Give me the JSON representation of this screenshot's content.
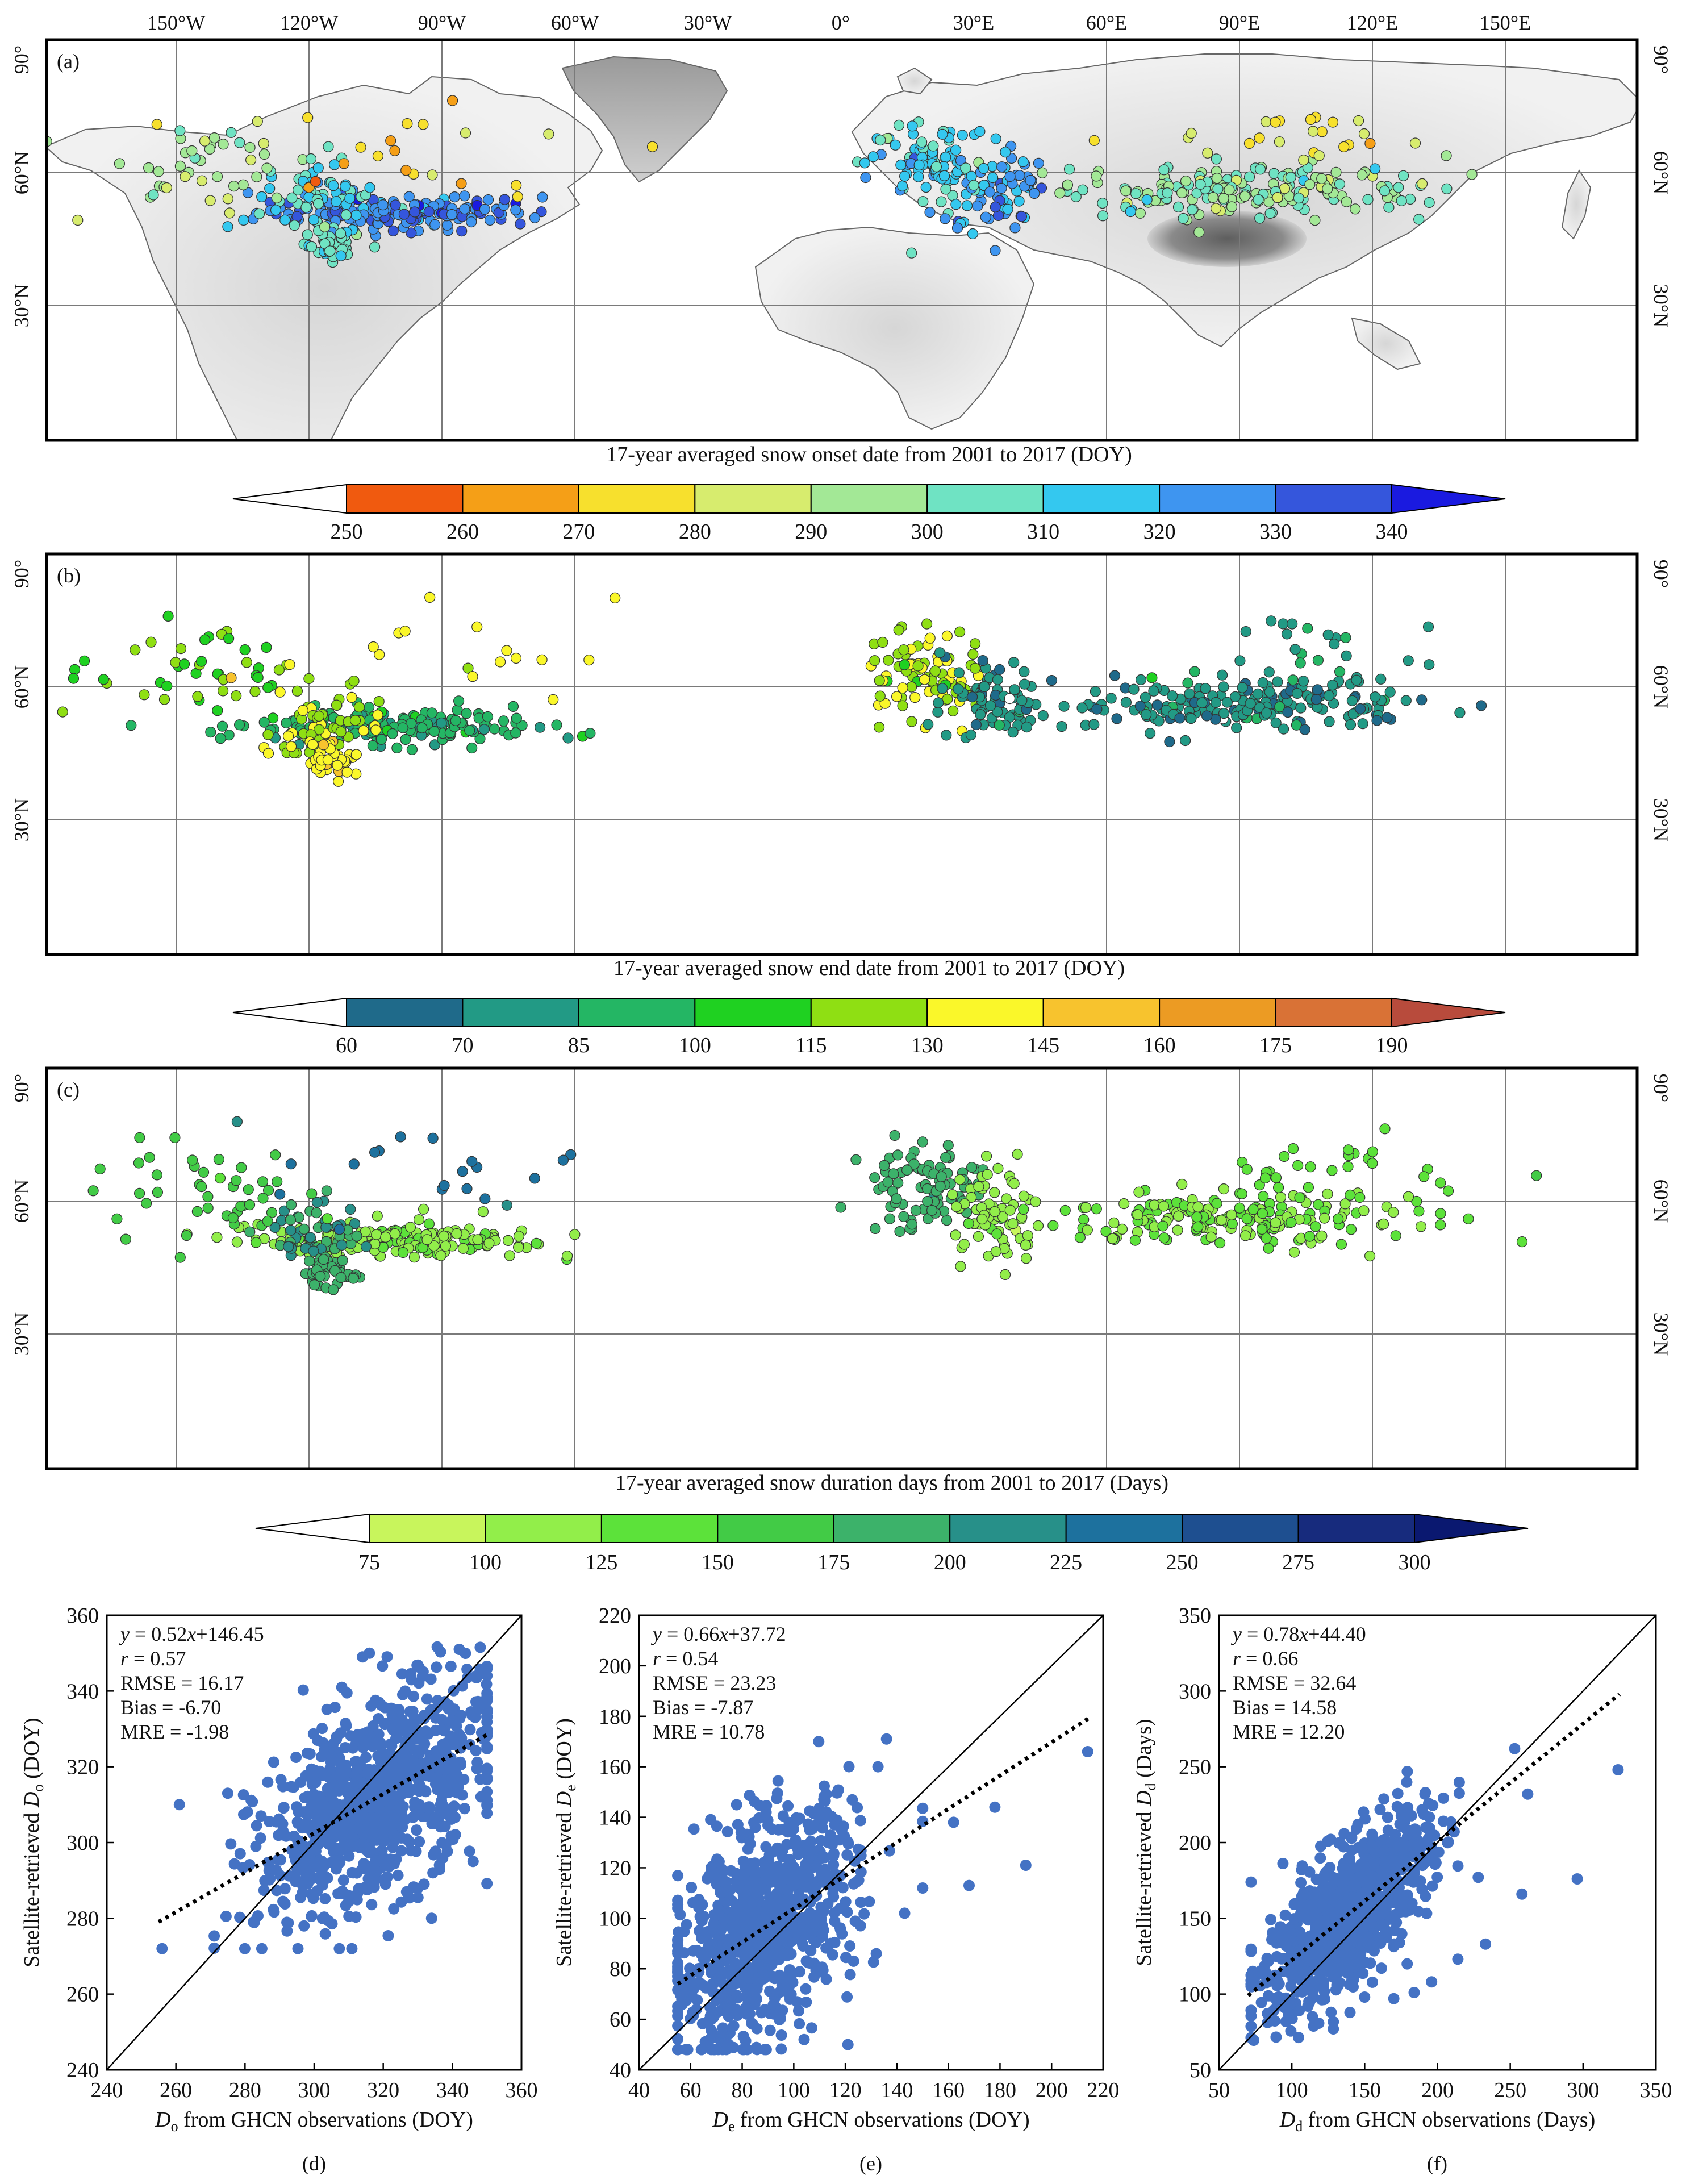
{
  "chart_data": [
    {
      "type": "map",
      "panel": "(a)",
      "top_lon_labels": [
        "150°W",
        "120°W",
        "90°W",
        "60°W",
        "30°W",
        "0°",
        "30°E",
        "60°E",
        "90°E",
        "120°E",
        "150°E"
      ],
      "lat_labels": [
        "90°",
        "60°N",
        "30°N"
      ],
      "colorbar": {
        "title": "17-year averaged snow onset date from 2001 to 2017 (DOY)",
        "ticks": [
          "250",
          "260",
          "270",
          "280",
          "290",
          "300",
          "310",
          "320",
          "330",
          "340"
        ],
        "colors": [
          "#ffffff",
          "#f05a0f",
          "#f59f17",
          "#f7e02d",
          "#d7ec6e",
          "#a3e896",
          "#6fe3c3",
          "#34c8ef",
          "#3e95f0",
          "#3556dc",
          "#1a1ae0"
        ]
      },
      "station_regions": [
        {
          "lon": -100,
          "lat": 51,
          "sd_lon": 16,
          "sd_lat": 2,
          "n": 170,
          "value": 328
        },
        {
          "lon": -118,
          "lat": 54,
          "sd_lon": 6,
          "sd_lat": 4,
          "n": 60,
          "value": 310
        },
        {
          "lon": -115,
          "lat": 44,
          "sd_lon": 3,
          "sd_lat": 2,
          "n": 40,
          "value": 305
        },
        {
          "lon": -145,
          "lat": 62,
          "sd_lon": 12,
          "sd_lat": 5,
          "n": 45,
          "value": 295
        },
        {
          "lon": -95,
          "lat": 68,
          "sd_lon": 22,
          "sd_lat": 6,
          "n": 20,
          "value": 272
        },
        {
          "lon": 20,
          "lat": 62,
          "sd_lon": 7,
          "sd_lat": 5,
          "n": 90,
          "value": 312
        },
        {
          "lon": 35,
          "lat": 57,
          "sd_lon": 6,
          "sd_lat": 5,
          "n": 70,
          "value": 322
        },
        {
          "lon": 90,
          "lat": 56,
          "sd_lon": 20,
          "sd_lat": 3,
          "n": 190,
          "value": 298
        },
        {
          "lon": 108,
          "lat": 68,
          "sd_lon": 18,
          "sd_lat": 3,
          "n": 25,
          "value": 280
        }
      ]
    },
    {
      "type": "map",
      "panel": "(b)",
      "top_lon_labels": [],
      "lat_labels": [
        "90°",
        "60°N",
        "30°N"
      ],
      "colorbar": {
        "title": "17-year averaged snow end date from 2001 to 2017 (DOY)",
        "ticks": [
          "60",
          "70",
          "85",
          "100",
          "115",
          "130",
          "145",
          "160",
          "175",
          "190"
        ],
        "colors": [
          "#ffffff",
          "#1f6a8a",
          "#229a85",
          "#24b664",
          "#1fd121",
          "#8fdf13",
          "#faf72a",
          "#f7c32e",
          "#ec9b23",
          "#d97236",
          "#b84b3c"
        ]
      },
      "station_regions": [
        {
          "lon": -100,
          "lat": 51,
          "sd_lon": 16,
          "sd_lat": 2,
          "n": 170,
          "value": 90
        },
        {
          "lon": -118,
          "lat": 50,
          "sd_lon": 5,
          "sd_lat": 4,
          "n": 60,
          "value": 128
        },
        {
          "lon": -115,
          "lat": 44,
          "sd_lon": 3,
          "sd_lat": 2,
          "n": 40,
          "value": 140
        },
        {
          "lon": -145,
          "lat": 62,
          "sd_lon": 12,
          "sd_lat": 5,
          "n": 45,
          "value": 112
        },
        {
          "lon": -95,
          "lat": 68,
          "sd_lon": 22,
          "sd_lat": 6,
          "n": 20,
          "value": 132
        },
        {
          "lon": 20,
          "lat": 63,
          "sd_lon": 7,
          "sd_lat": 5,
          "n": 90,
          "value": 128
        },
        {
          "lon": 35,
          "lat": 57,
          "sd_lon": 6,
          "sd_lat": 5,
          "n": 70,
          "value": 75
        },
        {
          "lon": 90,
          "lat": 56,
          "sd_lon": 20,
          "sd_lat": 3,
          "n": 190,
          "value": 75
        },
        {
          "lon": 108,
          "lat": 68,
          "sd_lon": 18,
          "sd_lat": 3,
          "n": 25,
          "value": 80
        }
      ]
    },
    {
      "type": "map",
      "panel": "(c)",
      "top_lon_labels": [],
      "lat_labels": [
        "90°",
        "60°N",
        "30°N"
      ],
      "colorbar": {
        "title": "17-year averaged snow duration days from 2001 to 2017 (Days)",
        "ticks": [
          "75",
          "100",
          "125",
          "150",
          "175",
          "200",
          "225",
          "250",
          "275",
          "300"
        ],
        "colors": [
          "#ffffff",
          "#c8f55c",
          "#92ee4a",
          "#5ce23a",
          "#42cb46",
          "#3cb26a",
          "#279089",
          "#1d719e",
          "#1e4f90",
          "#172b7d",
          "#0a1870"
        ]
      },
      "station_regions": [
        {
          "lon": -100,
          "lat": 51,
          "sd_lon": 16,
          "sd_lat": 2,
          "n": 170,
          "value": 120
        },
        {
          "lon": -118,
          "lat": 52,
          "sd_lon": 5,
          "sd_lat": 4,
          "n": 60,
          "value": 200
        },
        {
          "lon": -115,
          "lat": 44,
          "sd_lon": 3,
          "sd_lat": 2,
          "n": 40,
          "value": 190
        },
        {
          "lon": -145,
          "lat": 62,
          "sd_lon": 12,
          "sd_lat": 5,
          "n": 45,
          "value": 160
        },
        {
          "lon": -95,
          "lat": 68,
          "sd_lon": 22,
          "sd_lat": 6,
          "n": 20,
          "value": 230
        },
        {
          "lon": 20,
          "lat": 63,
          "sd_lon": 7,
          "sd_lat": 5,
          "n": 90,
          "value": 185
        },
        {
          "lon": 35,
          "lat": 57,
          "sd_lon": 6,
          "sd_lat": 5,
          "n": 70,
          "value": 115
        },
        {
          "lon": 90,
          "lat": 56,
          "sd_lon": 20,
          "sd_lat": 3,
          "n": 190,
          "value": 125
        },
        {
          "lon": 108,
          "lat": 68,
          "sd_lon": 18,
          "sd_lat": 3,
          "n": 25,
          "value": 140
        }
      ]
    },
    {
      "type": "scatter",
      "panel": "(d)",
      "xlabel_sym": "D",
      "xlabel_sub": "o",
      "xlabel_rest": " from GHCN observations (DOY)",
      "ylabel_pre": "Satellite-retrieved ",
      "ylabel_sym": "D",
      "ylabel_sub": "o",
      "ylabel_rest": " (DOY)",
      "xlim": [
        240,
        360
      ],
      "ylim": [
        240,
        360
      ],
      "xticks": [
        240,
        260,
        280,
        300,
        320,
        340,
        360
      ],
      "yticks": [
        240,
        260,
        280,
        300,
        320,
        340,
        360
      ],
      "fit": {
        "slope": 0.52,
        "intercept": 146.45,
        "x_start": 255,
        "x_end": 350
      },
      "stats": [
        "y = 0.52x+146.45",
        "r = 0.57",
        "RMSE = 16.17",
        "Bias = -6.70",
        "MRE = -1.98"
      ],
      "cloud": {
        "mean_x": 318,
        "sd_x": 17,
        "sd_resid": 13,
        "n": 900,
        "x_min": 255,
        "x_max": 350,
        "y_min": 272,
        "y_max": 352
      },
      "outliers": [
        [
          256,
          272
        ],
        [
          261,
          310
        ],
        [
          275,
          313
        ],
        [
          334,
          280
        ],
        [
          346,
          295
        ],
        [
          342,
          351
        ],
        [
          314,
          349
        ],
        [
          316,
          350
        ],
        [
          301,
          327
        ],
        [
          308,
          341
        ]
      ]
    },
    {
      "type": "scatter",
      "panel": "(e)",
      "xlabel_sym": "D",
      "xlabel_sub": "e",
      "xlabel_rest": " from GHCN observations (DOY)",
      "ylabel_pre": "Satellite-retrieved ",
      "ylabel_sym": "D",
      "ylabel_sub": "e",
      "ylabel_rest": " (DOY)",
      "xlim": [
        40,
        220
      ],
      "ylim": [
        40,
        220
      ],
      "xticks": [
        40,
        60,
        80,
        100,
        120,
        140,
        160,
        180,
        200,
        220
      ],
      "yticks": [
        40,
        60,
        80,
        100,
        120,
        140,
        160,
        180,
        200,
        220
      ],
      "fit": {
        "slope": 0.66,
        "intercept": 37.72,
        "x_start": 55,
        "x_end": 215
      },
      "stats": [
        "y = 0.66x+37.72",
        "r = 0.54",
        "RMSE = 23.23",
        "Bias = -7.87",
        "MRE = 10.78"
      ],
      "cloud": {
        "mean_x": 88,
        "sd_x": 18,
        "sd_resid": 20,
        "n": 900,
        "x_min": 55,
        "x_max": 150,
        "y_min": 48,
        "y_max": 170
      },
      "outliers": [
        [
          214,
          166
        ],
        [
          190,
          121
        ],
        [
          178,
          144
        ],
        [
          168,
          113
        ],
        [
          162,
          138
        ],
        [
          150,
          112
        ],
        [
          143,
          102
        ],
        [
          132,
          86
        ],
        [
          121,
          50
        ],
        [
          104,
          52
        ],
        [
          136,
          171
        ]
      ]
    },
    {
      "type": "scatter",
      "panel": "(f)",
      "xlabel_sym": "D",
      "xlabel_sub": "d",
      "xlabel_rest": " from GHCN observations (Days)",
      "ylabel_pre": "Satellite-retrieved ",
      "ylabel_sym": "D",
      "ylabel_sub": "d",
      "ylabel_rest": " (Days)",
      "xlim": [
        50,
        350
      ],
      "ylim": [
        50,
        350
      ],
      "xticks": [
        50,
        100,
        150,
        200,
        250,
        300,
        350
      ],
      "yticks": [
        50,
        100,
        150,
        200,
        250,
        300,
        350
      ],
      "fit": {
        "slope": 0.78,
        "intercept": 44.4,
        "x_start": 70,
        "x_end": 325
      },
      "stats": [
        "y = 0.78x+44.40",
        "r = 0.66",
        "RMSE = 32.64",
        "Bias = 14.58",
        "MRE = 12.20"
      ],
      "cloud": {
        "mean_x": 138,
        "sd_x": 28,
        "sd_resid": 23,
        "n": 900,
        "x_min": 72,
        "x_max": 215,
        "y_min": 65,
        "y_max": 250
      },
      "outliers": [
        [
          324,
          248
        ],
        [
          296,
          176
        ],
        [
          262,
          232
        ],
        [
          258,
          166
        ],
        [
          253,
          262
        ],
        [
          233,
          133
        ],
        [
          228,
          177
        ],
        [
          214,
          123
        ],
        [
          196,
          108
        ],
        [
          184,
          101
        ],
        [
          170,
          97
        ],
        [
          150,
          98
        ]
      ]
    }
  ]
}
